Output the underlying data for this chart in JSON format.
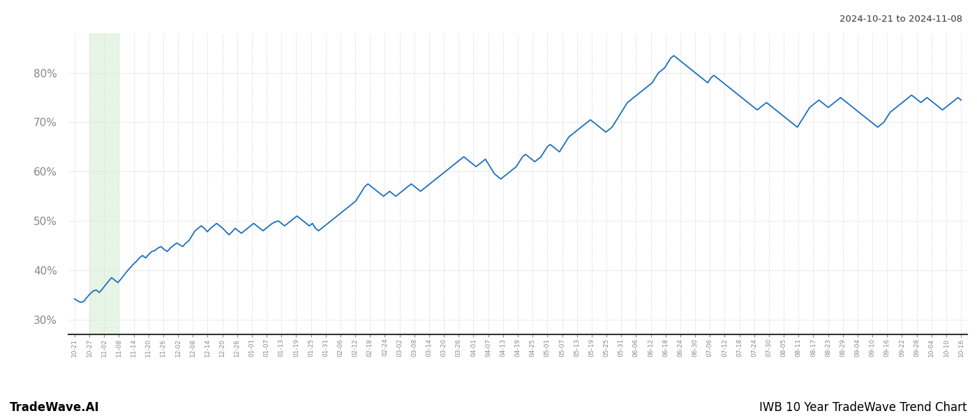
{
  "title_top_right": "2024-10-21 to 2024-11-08",
  "bottom_left": "TradeWave.AI",
  "bottom_right": "IWB 10 Year TradeWave Trend Chart",
  "highlight_color": "#d4edd4",
  "highlight_alpha": 0.55,
  "line_color": "#1a6fbe",
  "line_width": 1.3,
  "background_color": "#ffffff",
  "grid_color": "#cccccc",
  "ylim_low": 27,
  "ylim_high": 88,
  "yticks": [
    30,
    40,
    50,
    60,
    70,
    80
  ],
  "tick_color": "#888888",
  "x_labels": [
    "10-21",
    "10-27",
    "11-02",
    "11-08",
    "11-14",
    "11-20",
    "11-26",
    "12-02",
    "12-08",
    "12-14",
    "12-20",
    "12-26",
    "01-01",
    "01-07",
    "01-13",
    "01-19",
    "01-25",
    "01-31",
    "02-06",
    "02-12",
    "02-18",
    "02-24",
    "03-02",
    "03-08",
    "03-14",
    "03-20",
    "03-26",
    "04-01",
    "04-07",
    "04-13",
    "04-19",
    "04-25",
    "05-01",
    "05-07",
    "05-13",
    "05-19",
    "05-25",
    "05-31",
    "06-06",
    "06-12",
    "06-18",
    "06-24",
    "06-30",
    "07-06",
    "07-12",
    "07-18",
    "07-24",
    "07-30",
    "08-05",
    "08-11",
    "08-17",
    "08-23",
    "08-29",
    "09-04",
    "09-10",
    "09-16",
    "09-22",
    "09-28",
    "10-04",
    "10-10",
    "10-16"
  ],
  "highlight_label_start": "10-27",
  "highlight_label_end": "11-08",
  "values": [
    34.2,
    33.8,
    33.5,
    33.7,
    34.5,
    35.2,
    35.8,
    36.0,
    35.5,
    36.2,
    37.0,
    37.8,
    38.5,
    38.0,
    37.5,
    38.2,
    39.0,
    39.8,
    40.5,
    41.2,
    41.8,
    42.5,
    43.0,
    42.5,
    43.2,
    43.8,
    44.0,
    44.5,
    44.8,
    44.2,
    43.8,
    44.5,
    45.0,
    45.5,
    45.2,
    44.8,
    45.5,
    46.0,
    47.0,
    48.0,
    48.5,
    49.0,
    48.5,
    47.8,
    48.5,
    49.0,
    49.5,
    49.0,
    48.5,
    47.8,
    47.2,
    47.8,
    48.5,
    48.0,
    47.5,
    48.0,
    48.5,
    49.0,
    49.5,
    49.0,
    48.5,
    48.0,
    48.5,
    49.0,
    49.5,
    49.8,
    50.0,
    49.5,
    49.0,
    49.5,
    50.0,
    50.5,
    51.0,
    50.5,
    50.0,
    49.5,
    49.0,
    49.5,
    48.5,
    48.0,
    48.5,
    49.0,
    49.5,
    50.0,
    50.5,
    51.0,
    51.5,
    52.0,
    52.5,
    53.0,
    53.5,
    54.0,
    55.0,
    56.0,
    57.0,
    57.5,
    57.0,
    56.5,
    56.0,
    55.5,
    55.0,
    55.5,
    56.0,
    55.5,
    55.0,
    55.5,
    56.0,
    56.5,
    57.0,
    57.5,
    57.0,
    56.5,
    56.0,
    56.5,
    57.0,
    57.5,
    58.0,
    58.5,
    59.0,
    59.5,
    60.0,
    60.5,
    61.0,
    61.5,
    62.0,
    62.5,
    63.0,
    62.5,
    62.0,
    61.5,
    61.0,
    61.5,
    62.0,
    62.5,
    61.5,
    60.5,
    59.5,
    59.0,
    58.5,
    59.0,
    59.5,
    60.0,
    60.5,
    61.0,
    62.0,
    63.0,
    63.5,
    63.0,
    62.5,
    62.0,
    62.5,
    63.0,
    64.0,
    65.0,
    65.5,
    65.0,
    64.5,
    64.0,
    65.0,
    66.0,
    67.0,
    67.5,
    68.0,
    68.5,
    69.0,
    69.5,
    70.0,
    70.5,
    70.0,
    69.5,
    69.0,
    68.5,
    68.0,
    68.5,
    69.0,
    70.0,
    71.0,
    72.0,
    73.0,
    74.0,
    74.5,
    75.0,
    75.5,
    76.0,
    76.5,
    77.0,
    77.5,
    78.0,
    79.0,
    80.0,
    80.5,
    81.0,
    82.0,
    83.0,
    83.5,
    83.0,
    82.5,
    82.0,
    81.5,
    81.0,
    80.5,
    80.0,
    79.5,
    79.0,
    78.5,
    78.0,
    79.0,
    79.5,
    79.0,
    78.5,
    78.0,
    77.5,
    77.0,
    76.5,
    76.0,
    75.5,
    75.0,
    74.5,
    74.0,
    73.5,
    73.0,
    72.5,
    73.0,
    73.5,
    74.0,
    73.5,
    73.0,
    72.5,
    72.0,
    71.5,
    71.0,
    70.5,
    70.0,
    69.5,
    69.0,
    70.0,
    71.0,
    72.0,
    73.0,
    73.5,
    74.0,
    74.5,
    74.0,
    73.5,
    73.0,
    73.5,
    74.0,
    74.5,
    75.0,
    74.5,
    74.0,
    73.5,
    73.0,
    72.5,
    72.0,
    71.5,
    71.0,
    70.5,
    70.0,
    69.5,
    69.0,
    69.5,
    70.0,
    71.0,
    72.0,
    72.5,
    73.0,
    73.5,
    74.0,
    74.5,
    75.0,
    75.5,
    75.0,
    74.5,
    74.0,
    74.5,
    75.0,
    74.5,
    74.0,
    73.5,
    73.0,
    72.5,
    73.0,
    73.5,
    74.0,
    74.5,
    75.0,
    74.5
  ]
}
